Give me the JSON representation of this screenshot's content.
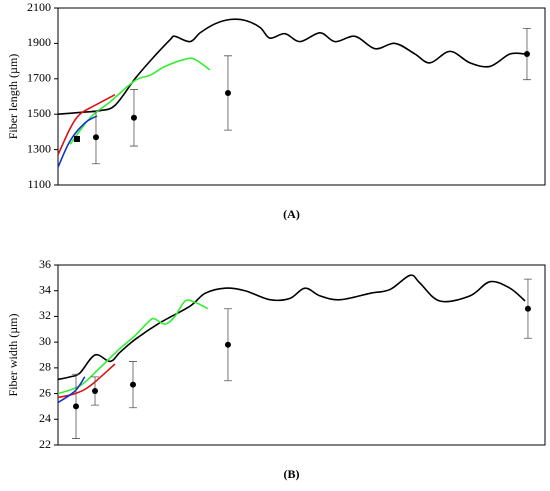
{
  "chart_data": [
    {
      "type": "line",
      "ylabel": "Fiber length (µm)",
      "caption": "(A)",
      "xlim": [
        0,
        100
      ],
      "ylim": [
        1100,
        2100
      ],
      "yticks": [
        1100,
        1300,
        1500,
        1700,
        1900,
        2100
      ],
      "series": [
        {
          "color": "#000000",
          "x": [
            0,
            4.5,
            8.6,
            11.7,
            15.8,
            18.9,
            23,
            24,
            27.1,
            29.2,
            32.2,
            35.3,
            38.4,
            41.5,
            43.5,
            46.6,
            49.7,
            53.8,
            56.9,
            61,
            65.1,
            69.2,
            73.3,
            76.4,
            80.5,
            84.6,
            88.7,
            92.8,
            95.9
          ],
          "values": [
            1500,
            1510,
            1520,
            1550,
            1700,
            1800,
            1920,
            1940,
            1910,
            1960,
            2010,
            2035,
            2030,
            1990,
            1930,
            1955,
            1910,
            1960,
            1910,
            1940,
            1870,
            1900,
            1840,
            1790,
            1855,
            1790,
            1770,
            1840,
            1840
          ]
        },
        {
          "color": "#33ee33",
          "x": [
            2.5,
            6.6,
            10.7,
            15.8,
            18.9,
            22,
            26.1,
            28.1,
            31.2
          ],
          "values": [
            1330,
            1480,
            1570,
            1690,
            1720,
            1770,
            1810,
            1810,
            1750
          ]
        },
        {
          "color": "#dd1111",
          "x": [
            0,
            2.5,
            4.5,
            7.6,
            11.7
          ],
          "values": [
            1270,
            1420,
            1500,
            1550,
            1610
          ]
        },
        {
          "color": "#1133cc",
          "x": [
            0,
            2.5,
            5.5,
            8
          ],
          "values": [
            1200,
            1350,
            1450,
            1490
          ]
        },
        {
          "marker": "square",
          "color": "#000000",
          "x": [
            3.9
          ],
          "values": [
            1360
          ]
        },
        {
          "marker": "circle",
          "color": "#000000",
          "x": [
            7.8,
            15.6,
            34.9,
            96.3
          ],
          "values": [
            1370,
            1480,
            1620,
            1840
          ],
          "errors": [
            150,
            160,
            210,
            145
          ]
        }
      ]
    },
    {
      "type": "line",
      "ylabel": "Fiber width (µm)",
      "caption": "(B)",
      "xlim": [
        0,
        100
      ],
      "ylim": [
        22,
        36
      ],
      "yticks": [
        22,
        24,
        26,
        28,
        30,
        32,
        34,
        36
      ],
      "series": [
        {
          "color": "#000000",
          "x": [
            0,
            2.5,
            4.5,
            7.6,
            10.7,
            12.7,
            15.8,
            20.9,
            27.1,
            30.2,
            34.3,
            38.4,
            43.5,
            47.6,
            50.7,
            53.8,
            57.9,
            64.1,
            68.2,
            72.3,
            74.3,
            78.4,
            84.6,
            88.7,
            92.8,
            95.9
          ],
          "values": [
            27.1,
            27.3,
            27.6,
            29,
            28.5,
            29.2,
            30.2,
            31.5,
            32.8,
            33.8,
            34.2,
            34,
            33.3,
            33.4,
            34.2,
            33.6,
            33.3,
            33.8,
            34.1,
            35.2,
            34.6,
            33.2,
            33.6,
            34.7,
            34.2,
            33.2
          ]
        },
        {
          "color": "#33ee33",
          "x": [
            0,
            4.5,
            8.6,
            12.7,
            15.8,
            18.9,
            19.9,
            22,
            24,
            26.1,
            28.1,
            30.8
          ],
          "values": [
            26,
            26.6,
            28,
            29.5,
            30.5,
            31.7,
            31.8,
            31.4,
            32,
            33.2,
            33.1,
            32.6
          ]
        },
        {
          "color": "#dd1111",
          "x": [
            0,
            3.5,
            6.6,
            11.7
          ],
          "values": [
            25.7,
            26,
            26.6,
            28.3
          ]
        },
        {
          "color": "#1133cc",
          "x": [
            0,
            3.5,
            5.5
          ],
          "values": [
            25.3,
            26.2,
            27.3
          ]
        },
        {
          "marker": "circle",
          "color": "#000000",
          "x": [
            3.7,
            7.6,
            15.4,
            34.9,
            96.5
          ],
          "values": [
            25,
            26.2,
            26.7,
            29.8,
            32.6
          ],
          "errors": [
            2.5,
            1.1,
            1.8,
            2.8,
            2.3
          ]
        }
      ]
    }
  ]
}
